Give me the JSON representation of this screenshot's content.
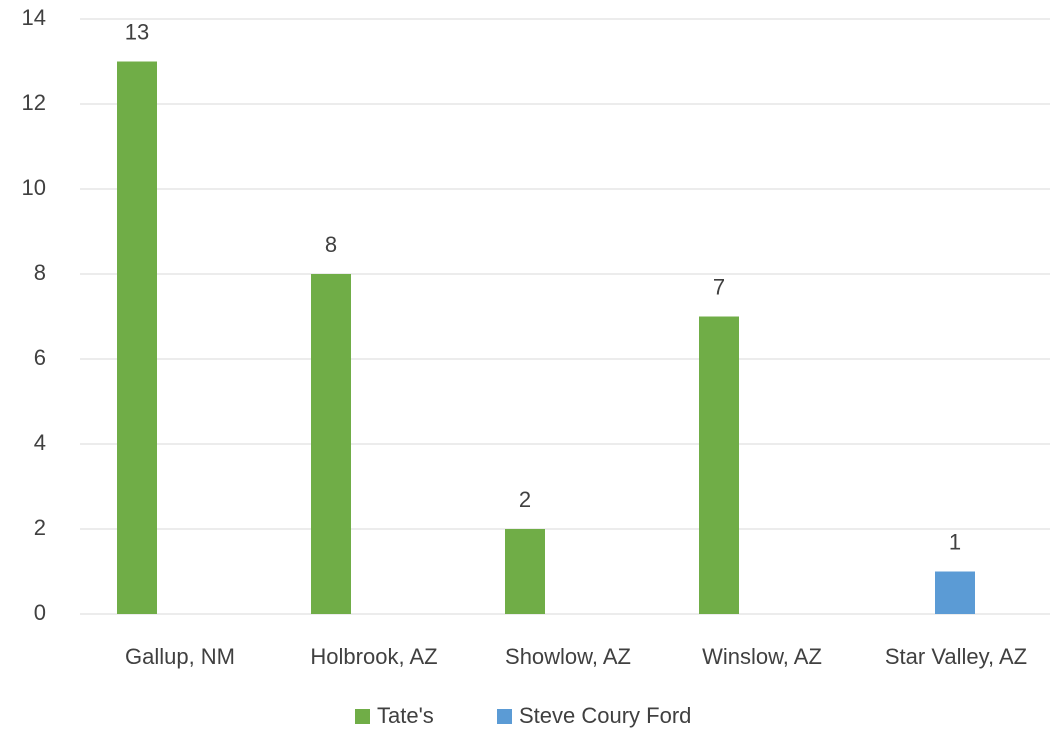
{
  "chart_data": {
    "type": "bar",
    "categories": [
      "Gallup, NM",
      "Holbrook, AZ",
      "Showlow, AZ",
      "Winslow, AZ",
      "Star Valley, AZ"
    ],
    "series": [
      {
        "name": "Tate's",
        "color": "#70ad47",
        "values": [
          13,
          8,
          2,
          7,
          null
        ]
      },
      {
        "name": "Steve Coury Ford",
        "color": "#5b9bd5",
        "values": [
          null,
          null,
          null,
          null,
          1
        ]
      }
    ],
    "ylim": [
      0,
      14
    ],
    "yticks": [
      0,
      2,
      4,
      6,
      8,
      10,
      12,
      14
    ],
    "grid": true,
    "legend": "bottom"
  }
}
